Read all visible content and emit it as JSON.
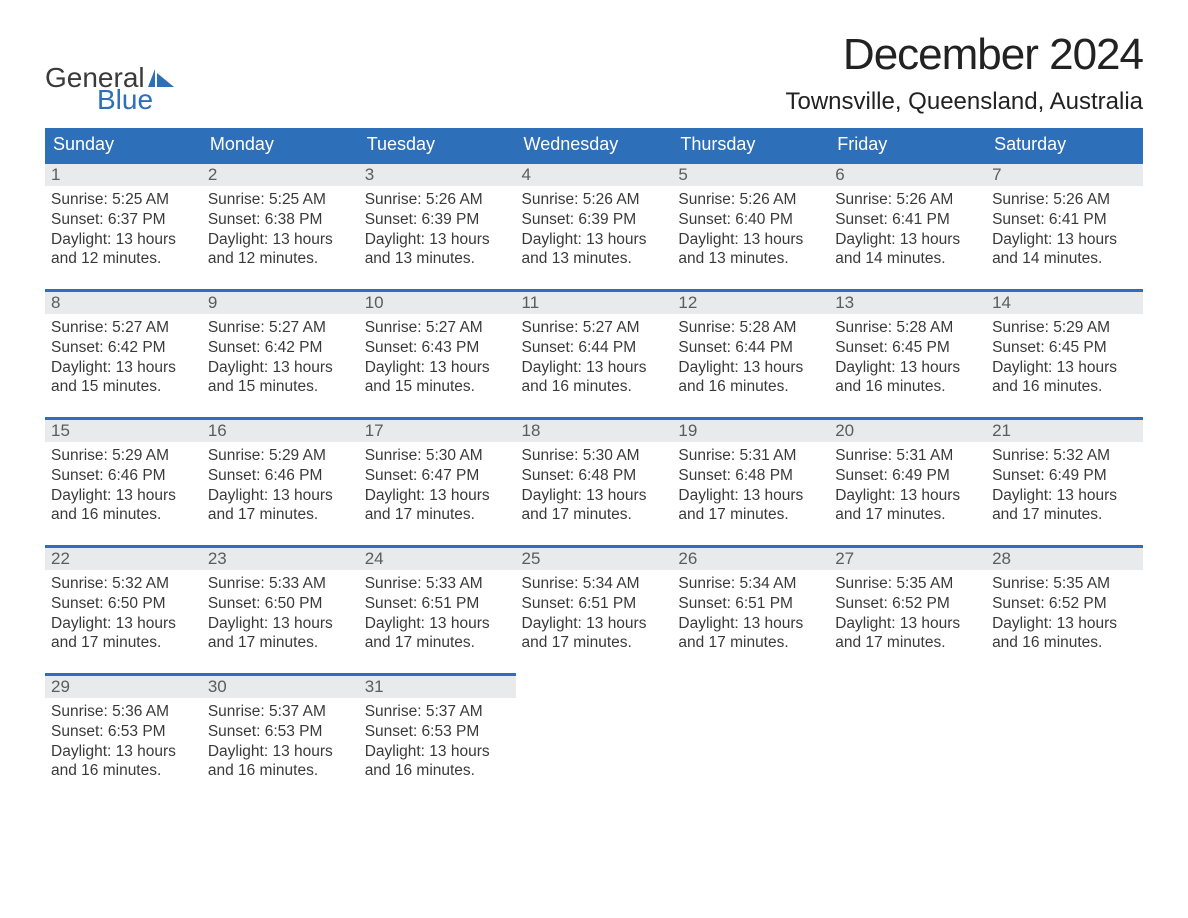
{
  "branding": {
    "logo_text_1": "General",
    "logo_text_2": "Blue",
    "logo_color_text": "#3a3a3a",
    "logo_color_accent": "#2d6fb8"
  },
  "header": {
    "title": "December 2024",
    "location": "Townsville, Queensland, Australia"
  },
  "style": {
    "header_bg": "#2d6fb8",
    "header_text": "#ffffff",
    "daynum_bg": "#e9eaeb",
    "daynum_text": "#5c5c5c",
    "body_text": "#3a3a3a",
    "row_divider": "#2d6fb8",
    "page_bg": "#ffffff",
    "title_fontsize": 44,
    "location_fontsize": 24,
    "dayheader_fontsize": 18,
    "daynum_fontsize": 17,
    "body_fontsize": 15.5
  },
  "calendar": {
    "day_headers": [
      "Sunday",
      "Monday",
      "Tuesday",
      "Wednesday",
      "Thursday",
      "Friday",
      "Saturday"
    ],
    "labels": {
      "sunrise": "Sunrise:",
      "sunset": "Sunset:",
      "daylight_prefix": "Daylight:",
      "hours_word": "hours",
      "and_word": "and",
      "minutes_word": "minutes."
    },
    "weeks": [
      [
        {
          "n": "1",
          "sunrise": "5:25 AM",
          "sunset": "6:37 PM",
          "h": "13",
          "m": "12"
        },
        {
          "n": "2",
          "sunrise": "5:25 AM",
          "sunset": "6:38 PM",
          "h": "13",
          "m": "12"
        },
        {
          "n": "3",
          "sunrise": "5:26 AM",
          "sunset": "6:39 PM",
          "h": "13",
          "m": "13"
        },
        {
          "n": "4",
          "sunrise": "5:26 AM",
          "sunset": "6:39 PM",
          "h": "13",
          "m": "13"
        },
        {
          "n": "5",
          "sunrise": "5:26 AM",
          "sunset": "6:40 PM",
          "h": "13",
          "m": "13"
        },
        {
          "n": "6",
          "sunrise": "5:26 AM",
          "sunset": "6:41 PM",
          "h": "13",
          "m": "14"
        },
        {
          "n": "7",
          "sunrise": "5:26 AM",
          "sunset": "6:41 PM",
          "h": "13",
          "m": "14"
        }
      ],
      [
        {
          "n": "8",
          "sunrise": "5:27 AM",
          "sunset": "6:42 PM",
          "h": "13",
          "m": "15"
        },
        {
          "n": "9",
          "sunrise": "5:27 AM",
          "sunset": "6:42 PM",
          "h": "13",
          "m": "15"
        },
        {
          "n": "10",
          "sunrise": "5:27 AM",
          "sunset": "6:43 PM",
          "h": "13",
          "m": "15"
        },
        {
          "n": "11",
          "sunrise": "5:27 AM",
          "sunset": "6:44 PM",
          "h": "13",
          "m": "16"
        },
        {
          "n": "12",
          "sunrise": "5:28 AM",
          "sunset": "6:44 PM",
          "h": "13",
          "m": "16"
        },
        {
          "n": "13",
          "sunrise": "5:28 AM",
          "sunset": "6:45 PM",
          "h": "13",
          "m": "16"
        },
        {
          "n": "14",
          "sunrise": "5:29 AM",
          "sunset": "6:45 PM",
          "h": "13",
          "m": "16"
        }
      ],
      [
        {
          "n": "15",
          "sunrise": "5:29 AM",
          "sunset": "6:46 PM",
          "h": "13",
          "m": "16"
        },
        {
          "n": "16",
          "sunrise": "5:29 AM",
          "sunset": "6:46 PM",
          "h": "13",
          "m": "17"
        },
        {
          "n": "17",
          "sunrise": "5:30 AM",
          "sunset": "6:47 PM",
          "h": "13",
          "m": "17"
        },
        {
          "n": "18",
          "sunrise": "5:30 AM",
          "sunset": "6:48 PM",
          "h": "13",
          "m": "17"
        },
        {
          "n": "19",
          "sunrise": "5:31 AM",
          "sunset": "6:48 PM",
          "h": "13",
          "m": "17"
        },
        {
          "n": "20",
          "sunrise": "5:31 AM",
          "sunset": "6:49 PM",
          "h": "13",
          "m": "17"
        },
        {
          "n": "21",
          "sunrise": "5:32 AM",
          "sunset": "6:49 PM",
          "h": "13",
          "m": "17"
        }
      ],
      [
        {
          "n": "22",
          "sunrise": "5:32 AM",
          "sunset": "6:50 PM",
          "h": "13",
          "m": "17"
        },
        {
          "n": "23",
          "sunrise": "5:33 AM",
          "sunset": "6:50 PM",
          "h": "13",
          "m": "17"
        },
        {
          "n": "24",
          "sunrise": "5:33 AM",
          "sunset": "6:51 PM",
          "h": "13",
          "m": "17"
        },
        {
          "n": "25",
          "sunrise": "5:34 AM",
          "sunset": "6:51 PM",
          "h": "13",
          "m": "17"
        },
        {
          "n": "26",
          "sunrise": "5:34 AM",
          "sunset": "6:51 PM",
          "h": "13",
          "m": "17"
        },
        {
          "n": "27",
          "sunrise": "5:35 AM",
          "sunset": "6:52 PM",
          "h": "13",
          "m": "17"
        },
        {
          "n": "28",
          "sunrise": "5:35 AM",
          "sunset": "6:52 PM",
          "h": "13",
          "m": "16"
        }
      ],
      [
        {
          "n": "29",
          "sunrise": "5:36 AM",
          "sunset": "6:53 PM",
          "h": "13",
          "m": "16"
        },
        {
          "n": "30",
          "sunrise": "5:37 AM",
          "sunset": "6:53 PM",
          "h": "13",
          "m": "16"
        },
        {
          "n": "31",
          "sunrise": "5:37 AM",
          "sunset": "6:53 PM",
          "h": "13",
          "m": "16"
        },
        null,
        null,
        null,
        null
      ]
    ]
  }
}
